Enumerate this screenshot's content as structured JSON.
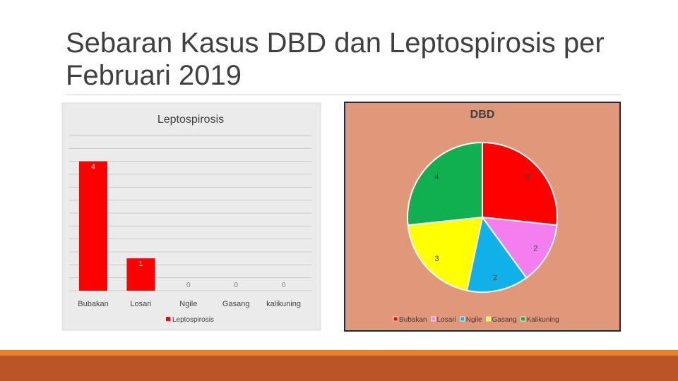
{
  "slide": {
    "title": "Sebaran Kasus DBD dan Leptospirosis per Februari 2019"
  },
  "colors": {
    "bar": "#ff0000",
    "pie_bg": "#e0977a",
    "accent_orange": "#e6812b",
    "accent_rust": "#bb5526"
  },
  "chart_data": [
    {
      "type": "bar",
      "title": "Leptospirosis",
      "categories": [
        "Bubakan",
        "Losari",
        "Ngile",
        "Gasang",
        "kalikuning"
      ],
      "series": [
        {
          "name": "Leptospirosis",
          "values": [
            4,
            1,
            0,
            0,
            0
          ],
          "color": "#ff0000"
        }
      ],
      "data_labels": [
        "4",
        "1",
        "0",
        "0",
        "0"
      ],
      "ylim": [
        0,
        4.8
      ],
      "grid": true,
      "legend": "bottom"
    },
    {
      "type": "pie",
      "title": "DBD",
      "categories": [
        "Bubakan",
        "Losari",
        "Ngile",
        "Gasang",
        "Kalikuning"
      ],
      "values": [
        4,
        2,
        2,
        3,
        4
      ],
      "data_labels": [
        "4",
        "2",
        "2",
        "3",
        "4"
      ],
      "colors": [
        "#ff0000",
        "#f47ef0",
        "#10b0e8",
        "#ffff00",
        "#10b050"
      ],
      "legend": "bottom"
    }
  ]
}
